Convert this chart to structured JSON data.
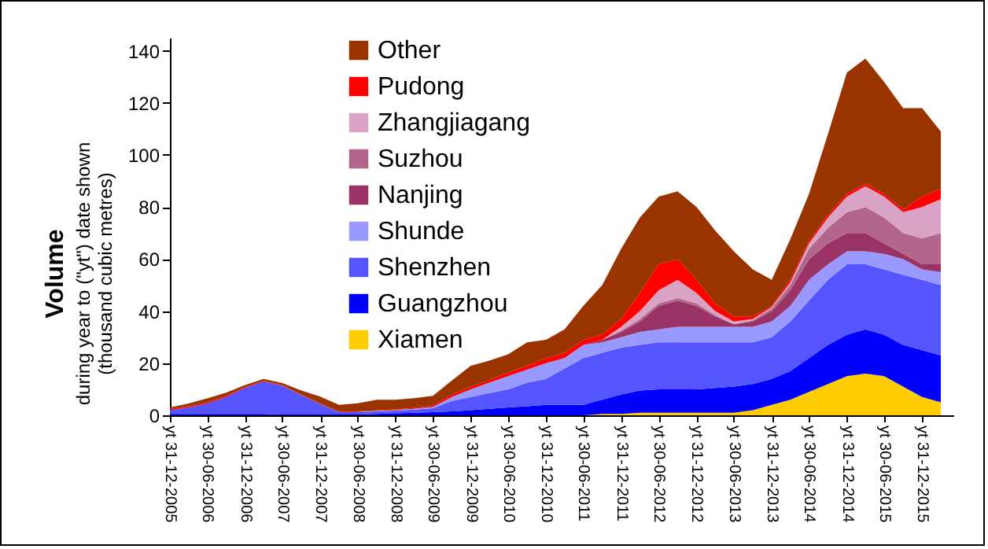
{
  "chart_data": {
    "type": "area",
    "stacked": true,
    "ylabel": "Volume",
    "annotations": [
      "during year to (\"yt\") date shown",
      "(thousand cubic metres)"
    ],
    "x": [
      "2005-12-31",
      "2006-03-31",
      "2006-06-30",
      "2006-09-30",
      "2006-12-31",
      "2007-03-31",
      "2007-06-30",
      "2007-09-30",
      "2007-12-31",
      "2008-03-31",
      "2008-06-30",
      "2008-09-30",
      "2008-12-31",
      "2009-03-31",
      "2009-06-30",
      "2009-09-30",
      "2009-12-31",
      "2010-03-31",
      "2010-06-30",
      "2010-09-30",
      "2010-12-31",
      "2011-03-31",
      "2011-06-30",
      "2011-09-30",
      "2011-12-31",
      "2012-03-31",
      "2012-06-30",
      "2012-09-30",
      "2012-12-31",
      "2013-03-31",
      "2013-06-30",
      "2013-09-30",
      "2013-12-31",
      "2014-03-31",
      "2014-06-30",
      "2014-09-30",
      "2014-12-31",
      "2015-03-31",
      "2015-06-30",
      "2015-09-30",
      "2015-12-31",
      "2016-03-31"
    ],
    "series": [
      {
        "name": "Xiamen",
        "color": "#ffcc00",
        "values": [
          0,
          0,
          0,
          0,
          0,
          0,
          0,
          0,
          0,
          0,
          0,
          0,
          0,
          0,
          0,
          0,
          0,
          0,
          0,
          0,
          0,
          0,
          0,
          0.5,
          0.5,
          1,
          1,
          1,
          1,
          1,
          1,
          2,
          4,
          6,
          9,
          12,
          15,
          16,
          15,
          11,
          7,
          5
        ]
      },
      {
        "name": "Guangzhou",
        "color": "#0000ff",
        "values": [
          0.5,
          0.5,
          0.5,
          0.5,
          0.5,
          0.5,
          0.3,
          0.3,
          0.3,
          0.3,
          0.3,
          0.5,
          0.8,
          1,
          1.2,
          1.5,
          2,
          2.5,
          3,
          3.5,
          4,
          4,
          4,
          5.5,
          7.5,
          8.5,
          9,
          9,
          9,
          9.5,
          10,
          10,
          10,
          11,
          13,
          15,
          16,
          17,
          16,
          16,
          18,
          18
        ]
      },
      {
        "name": "Shenzhen",
        "color": "#5555ff",
        "values": [
          1.5,
          2.5,
          4,
          6.5,
          10,
          12.5,
          11,
          7.5,
          4,
          1,
          1,
          1,
          1,
          1.2,
          1.5,
          4,
          5,
          6,
          7,
          9,
          10,
          14,
          18,
          18,
          18,
          17.5,
          18,
          18,
          18,
          17.5,
          17,
          16,
          16,
          19,
          22,
          25,
          27,
          25,
          25,
          27,
          27,
          27
        ]
      },
      {
        "name": "Shunde",
        "color": "#9999ff",
        "values": [
          0,
          0,
          0,
          0,
          0,
          0,
          0,
          0,
          0,
          0,
          0,
          0.2,
          0.2,
          0.3,
          0.5,
          1.5,
          3,
          4,
          5,
          5,
          6,
          4,
          5,
          4,
          4,
          5,
          5,
          6,
          6,
          6,
          6,
          6,
          6,
          6,
          8,
          6,
          5,
          5,
          6,
          6,
          4,
          5
        ]
      },
      {
        "name": "Nanjing",
        "color": "#993366",
        "values": [
          0,
          0,
          0,
          0,
          0,
          0,
          0,
          0,
          0,
          0,
          0,
          0,
          0,
          0,
          0,
          0,
          0,
          0,
          0,
          0,
          0,
          0,
          0,
          1,
          2,
          4,
          9,
          10,
          8,
          4,
          1,
          2,
          4,
          6,
          8,
          8,
          7,
          7,
          4,
          2,
          2,
          3
        ]
      },
      {
        "name": "Suzhou",
        "color": "#b3668c",
        "values": [
          0,
          0,
          0,
          0,
          0,
          0,
          0,
          0,
          0,
          0,
          0,
          0,
          0,
          0,
          0,
          0,
          0,
          0,
          0,
          0,
          0,
          0,
          0,
          0,
          0.5,
          1,
          1,
          1,
          1,
          0.5,
          0,
          0.5,
          1,
          2,
          4,
          6,
          8,
          10,
          10,
          8,
          10,
          12
        ]
      },
      {
        "name": "Zhangjiagang",
        "color": "#d9a3c6",
        "values": [
          0,
          0,
          0,
          0,
          0,
          0,
          0,
          0,
          0,
          0,
          0,
          0,
          0,
          0,
          0,
          0,
          0,
          0,
          0,
          0,
          0,
          0,
          0,
          0,
          1.5,
          3,
          5,
          7,
          4,
          1.5,
          1,
          0.5,
          0.5,
          1,
          2,
          4,
          6,
          8,
          8,
          8,
          12,
          13
        ]
      },
      {
        "name": "Pudong",
        "color": "#ff0000",
        "values": [
          0.5,
          0.5,
          0.5,
          0.5,
          0.3,
          0.3,
          0.3,
          0.2,
          0.2,
          0.2,
          0.2,
          0.2,
          0.3,
          0.3,
          0.5,
          1,
          1,
          1,
          1.5,
          1.5,
          2,
          2,
          2,
          2,
          3,
          7,
          10,
          8,
          5,
          3,
          2,
          1,
          0.5,
          1,
          1,
          1,
          1,
          1,
          1,
          1,
          4,
          4
        ]
      },
      {
        "name": "Other",
        "color": "#993300",
        "values": [
          0.5,
          1,
          1.5,
          1.2,
          0.8,
          0.7,
          0.8,
          1.5,
          2.7,
          2.5,
          3.1,
          4.1,
          3.7,
          3.8,
          3.8,
          5.4,
          8,
          7.5,
          6.9,
          9,
          7,
          9,
          13,
          19,
          27,
          29,
          26,
          26,
          28,
          28,
          25,
          18,
          10,
          15.6,
          18,
          31,
          46.6,
          48,
          43,
          39,
          34,
          22
        ]
      }
    ],
    "xlim": [
      "2005-12-31",
      "2016-05-31"
    ],
    "xticks": [
      {
        "value": "2005-12-31",
        "label": "yt 31-12-2005"
      },
      {
        "value": "2006-06-30",
        "label": "yt 30-06-2006"
      },
      {
        "value": "2006-12-31",
        "label": "yt 31-12-2006"
      },
      {
        "value": "2007-06-30",
        "label": "yt 30-06-2007"
      },
      {
        "value": "2007-12-31",
        "label": "yt 31-12-2007"
      },
      {
        "value": "2008-06-30",
        "label": "yt 30-06-2008"
      },
      {
        "value": "2008-12-31",
        "label": "yt 31-12-2008"
      },
      {
        "value": "2009-06-30",
        "label": "yt 30-06-2009"
      },
      {
        "value": "2009-12-31",
        "label": "yt 31-12-2009"
      },
      {
        "value": "2010-06-30",
        "label": "yt 30-06-2010"
      },
      {
        "value": "2010-12-31",
        "label": "yt 31-12-2010"
      },
      {
        "value": "2011-06-30",
        "label": "yt 30-06-2011"
      },
      {
        "value": "2011-12-31",
        "label": "yt 31-12-2011"
      },
      {
        "value": "2012-06-30",
        "label": "yt 30-06-2012"
      },
      {
        "value": "2012-12-31",
        "label": "yt 31-12-2012"
      },
      {
        "value": "2013-06-30",
        "label": "yt 30-06-2013"
      },
      {
        "value": "2013-12-31",
        "label": "yt 31-12-2013"
      },
      {
        "value": "2014-06-30",
        "label": "yt 30-06-2014"
      },
      {
        "value": "2014-12-31",
        "label": "yt 31-12-2014"
      },
      {
        "value": "2015-06-30",
        "label": "yt 30-06-2015"
      },
      {
        "value": "2015-12-31",
        "label": "yt 31-12-2015"
      }
    ],
    "ylim": [
      0,
      145
    ],
    "yticks": [
      0,
      20,
      40,
      60,
      80,
      100,
      120,
      140
    ],
    "legend": "top left",
    "grid": false
  }
}
